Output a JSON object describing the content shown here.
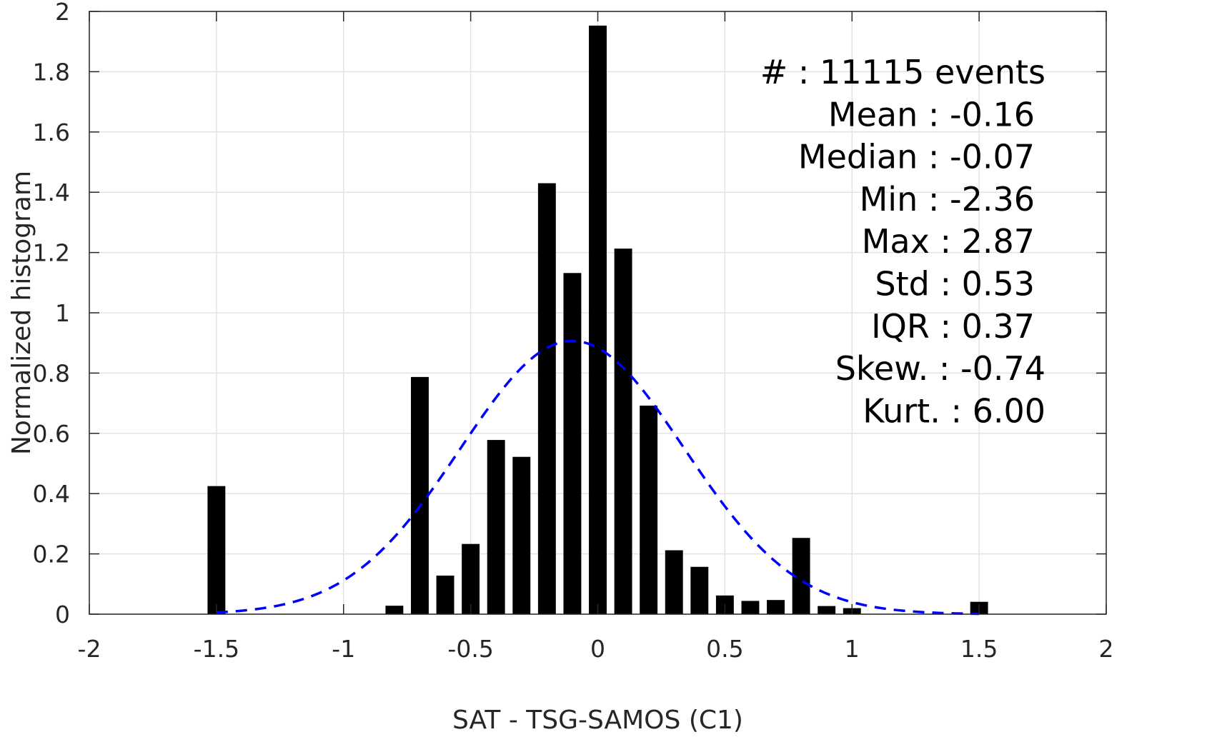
{
  "chart_data": {
    "type": "bar",
    "xlabel": "SAT - TSG-SAMOS (C1)",
    "ylabel": "Normalized histogram",
    "xlim": [
      -2,
      2
    ],
    "ylim": [
      0,
      2
    ],
    "xticks": [
      -2,
      -1.5,
      -1,
      -0.5,
      0,
      0.5,
      1,
      1.5,
      2
    ],
    "xtick_labels": [
      "-2",
      "-1.5",
      "-1",
      "-0.5",
      "0",
      "0.5",
      "1",
      "1.5",
      "2"
    ],
    "yticks": [
      0,
      0.2,
      0.4,
      0.6,
      0.8,
      1,
      1.2,
      1.4,
      1.6,
      1.8,
      2
    ],
    "ytick_labels": [
      "0",
      "0.2",
      "0.4",
      "0.6",
      "0.8",
      "1",
      "1.2",
      "1.4",
      "1.6",
      "1.8",
      "2"
    ],
    "grid": true,
    "bar_color": "#000000",
    "bar_width": 0.07,
    "bars": [
      {
        "x": -1.5,
        "y": 0.425
      },
      {
        "x": -0.8,
        "y": 0.028
      },
      {
        "x": -0.7,
        "y": 0.787
      },
      {
        "x": -0.6,
        "y": 0.128
      },
      {
        "x": -0.5,
        "y": 0.233
      },
      {
        "x": -0.4,
        "y": 0.578
      },
      {
        "x": -0.3,
        "y": 0.522
      },
      {
        "x": -0.2,
        "y": 1.43
      },
      {
        "x": -0.1,
        "y": 1.132
      },
      {
        "x": 0.0,
        "y": 1.953
      },
      {
        "x": 0.1,
        "y": 1.213
      },
      {
        "x": 0.2,
        "y": 0.692
      },
      {
        "x": 0.3,
        "y": 0.212
      },
      {
        "x": 0.4,
        "y": 0.157
      },
      {
        "x": 0.5,
        "y": 0.062
      },
      {
        "x": 0.6,
        "y": 0.044
      },
      {
        "x": 0.7,
        "y": 0.047
      },
      {
        "x": 0.8,
        "y": 0.253
      },
      {
        "x": 0.9,
        "y": 0.027
      },
      {
        "x": 1.0,
        "y": 0.02
      },
      {
        "x": 1.5,
        "y": 0.041
      }
    ],
    "fit_curve": {
      "style": "dashed",
      "color": "#0000ff",
      "mean": -0.1,
      "std": 0.44,
      "x_range": [
        -1.5,
        1.5
      ]
    },
    "stats": [
      "#  : 11115 events",
      "Mean : -0.16",
      "Median : -0.07",
      "Min : -2.36",
      "Max : 2.87",
      "Std : 0.53",
      "IQR : 0.37",
      "Skew. : -0.74",
      "Kurt. : 6.00"
    ]
  }
}
